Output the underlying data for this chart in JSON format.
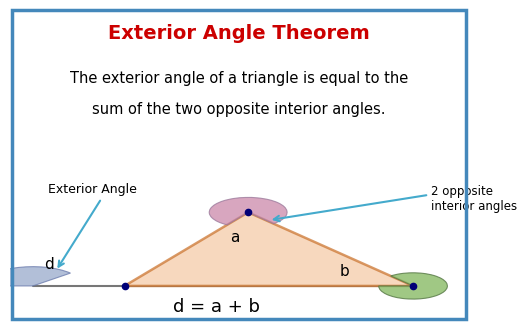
{
  "title": "Exterior Angle Theorem",
  "title_color": "#cc0000",
  "title_fontsize": 14,
  "desc_line1": "The exterior angle of a triangle is equal to the",
  "desc_line2": "sum of the two opposite interior angles.",
  "desc_fontsize": 10.5,
  "formula": "d = a + b",
  "formula_fontsize": 13,
  "bg_color": "#ffffff",
  "border_color": "#4488bb",
  "triangle_fill": "#f5cca8",
  "triangle_alpha": 0.75,
  "arc_d_color": "#99aacc",
  "arc_d_alpha": 0.75,
  "arc_a_color": "#cc88aa",
  "arc_a_alpha": 0.75,
  "arc_b_color": "#88bb66",
  "arc_b_alpha": 0.8,
  "label_a": "a",
  "label_b": "b",
  "label_d": "d",
  "label_ext": "Exterior Angle",
  "label_opp": "2 opposite\ninterior angles",
  "arrow_color": "#44aacc",
  "dot_color": "#000077",
  "line_color": "#cc7733",
  "baseline_color": "#777777",
  "D": [
    0.5,
    2.0
  ],
  "B": [
    2.5,
    2.0
  ],
  "A": [
    5.2,
    6.2
  ],
  "C": [
    8.8,
    2.0
  ],
  "xlim": [
    0,
    10
  ],
  "ylim": [
    0,
    10
  ]
}
